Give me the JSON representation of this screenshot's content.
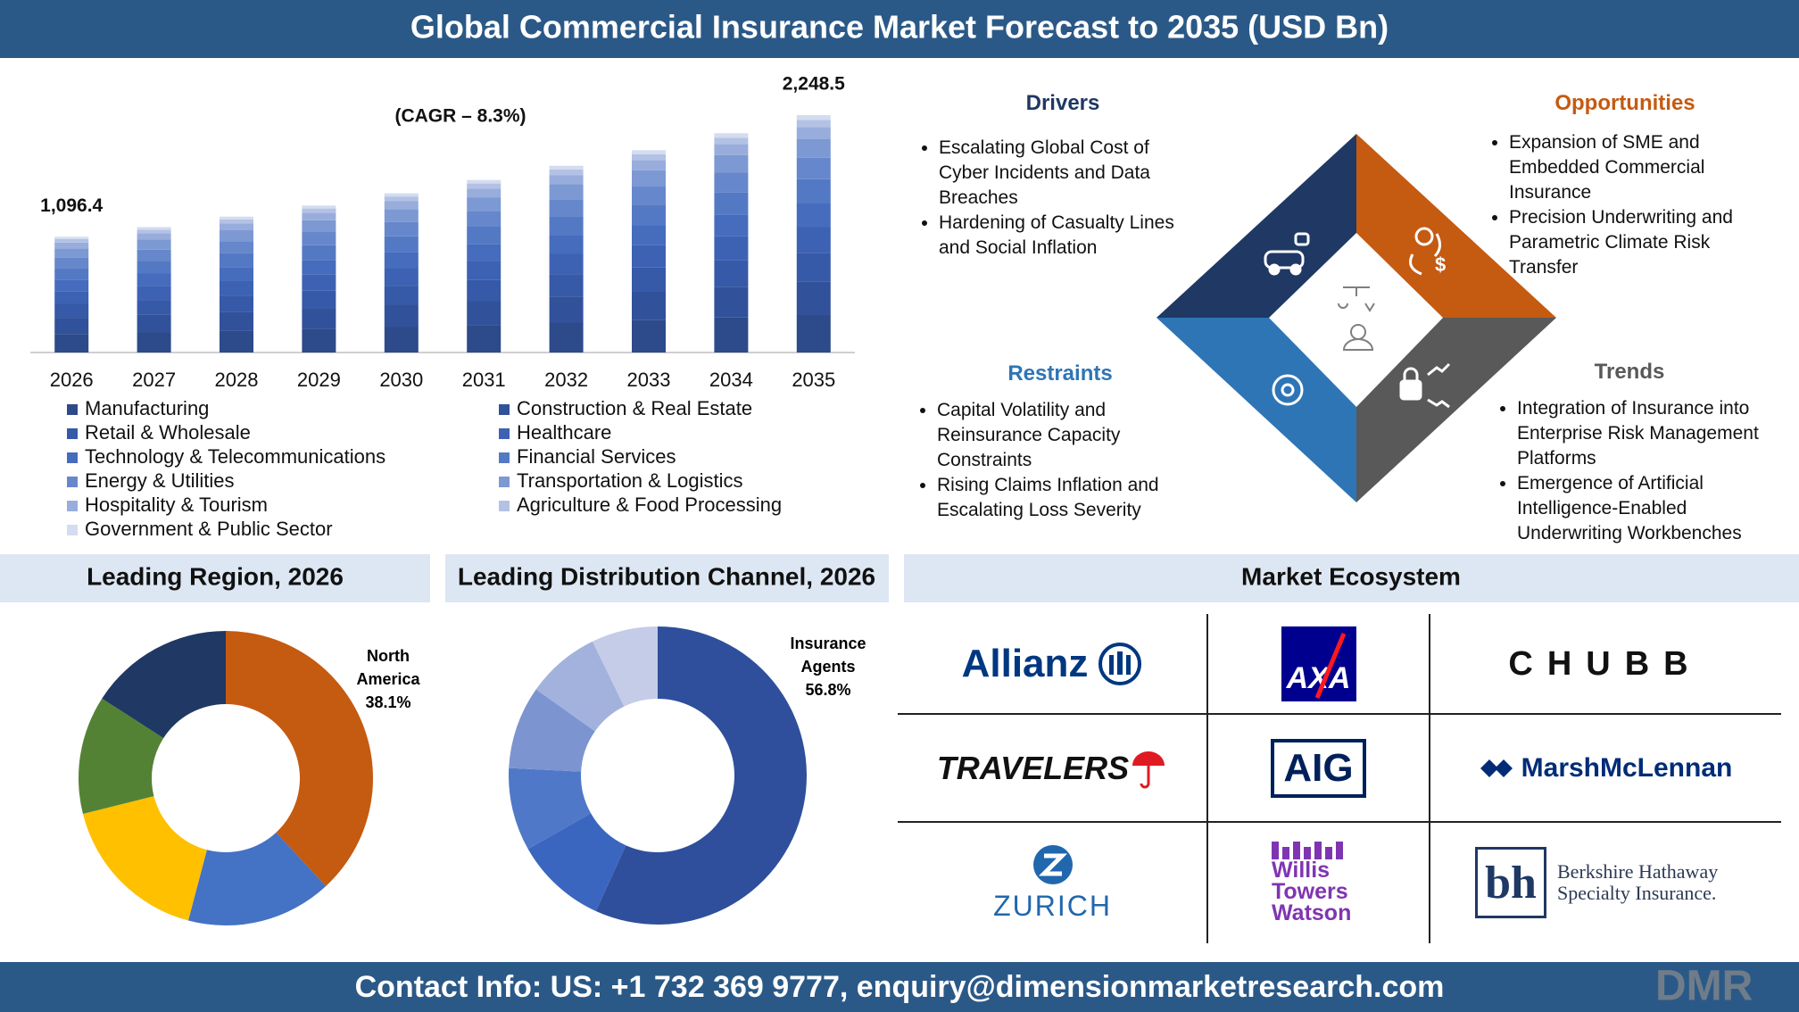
{
  "title": "Global Commercial Insurance Market Forecast to 2035 (USD Bn)",
  "chart_data": [
    {
      "type": "stacked-bar",
      "annotation": "(CAGR – 8.3%)",
      "categories": [
        "2026",
        "2027",
        "2028",
        "2029",
        "2030",
        "2031",
        "2032",
        "2033",
        "2034",
        "2035"
      ],
      "series": [
        {
          "name": "Manufacturing",
          "color": "#2d4a8a",
          "values": [
            175.5,
            190,
            206,
            223,
            241,
            261,
            283,
            307,
            332,
            359.6
          ]
        },
        {
          "name": "Construction & Real Estate",
          "color": "#31519a",
          "values": [
            153.5,
            166,
            180,
            195,
            211,
            229,
            248,
            268,
            291,
            314.8
          ]
        },
        {
          "name": "Retail & Wholesale",
          "color": "#3659a8",
          "values": [
            131.6,
            142,
            154,
            167,
            181,
            196,
            212,
            230,
            249,
            269.8
          ]
        },
        {
          "name": "Healthcare",
          "color": "#3d62b4",
          "values": [
            120.6,
            131,
            141,
            153,
            166,
            180,
            195,
            211,
            228,
            247.3
          ]
        },
        {
          "name": "Technology & Telecommunications",
          "color": "#456cbd",
          "values": [
            109.6,
            119,
            129,
            139,
            151,
            163,
            177,
            192,
            208,
            224.9
          ]
        },
        {
          "name": "Financial Services",
          "color": "#5479c4",
          "values": [
            109.6,
            119,
            129,
            139,
            151,
            163,
            177,
            192,
            208,
            224.9
          ]
        },
        {
          "name": "Energy & Utilities",
          "color": "#6687cb",
          "values": [
            98.7,
            107,
            116,
            125,
            136,
            147,
            159,
            172,
            187,
            202.4
          ]
        },
        {
          "name": "Transportation & Logistics",
          "color": "#7d99d3",
          "values": [
            87.7,
            95,
            103,
            111,
            121,
            131,
            142,
            153,
            166,
            179.9
          ]
        },
        {
          "name": "Hospitality & Tourism",
          "color": "#98addb",
          "values": [
            54.8,
            59,
            64,
            70,
            75,
            82,
            88,
            96,
            104,
            112.4
          ]
        },
        {
          "name": "Agriculture & Food Processing",
          "color": "#b3c2e4",
          "values": [
            32.9,
            36,
            39,
            42,
            45,
            49,
            53,
            57,
            62,
            67.5
          ]
        },
        {
          "name": "Government & Public Sector",
          "color": "#d3dcf0",
          "values": [
            21.9,
            24,
            26,
            28,
            30,
            33,
            35,
            38,
            42,
            45.0
          ]
        }
      ],
      "totals": [
        1096.4,
        null,
        null,
        null,
        null,
        null,
        null,
        null,
        null,
        2248.5
      ],
      "total_labels": [
        "1,096.4",
        null,
        null,
        null,
        null,
        null,
        null,
        null,
        null,
        "2,248.5"
      ]
    },
    {
      "type": "donut",
      "title": "Leading Region, 2026",
      "categories": [
        "North America",
        null,
        null,
        null,
        null
      ],
      "values": [
        38.1,
        16,
        17,
        13,
        15.9
      ],
      "value_labels": [
        "38.1%",
        null,
        null,
        null,
        null
      ],
      "colors": [
        "#c55a11",
        "#4472c4",
        "#ffc000",
        "#548235",
        "#203864"
      ]
    },
    {
      "type": "donut",
      "title": "Leading Distribution Channel, 2026",
      "categories": [
        "Insurance Agents",
        null,
        null,
        null,
        null,
        null
      ],
      "values": [
        56.8,
        10,
        9,
        9,
        8,
        7.2
      ],
      "value_labels": [
        "56.8%",
        null,
        null,
        null,
        null,
        null
      ],
      "colors": [
        "#2f4f9c",
        "#3a66c0",
        "#5078c8",
        "#7c94d0",
        "#a3b2dd",
        "#c4cce8"
      ]
    }
  ],
  "dro": {
    "drivers": {
      "title": "Drivers",
      "items": [
        "Escalating Global Cost of Cyber Incidents and Data Breaches",
        "Hardening of Casualty Lines and Social Inflation"
      ]
    },
    "opportunities": {
      "title": "Opportunities",
      "items": [
        "Expansion of SME and Embedded Commercial Insurance",
        "Precision Underwriting and Parametric Climate Risk Transfer"
      ]
    },
    "restraints": {
      "title": "Restraints",
      "items": [
        "Capital Volatility and Reinsurance Capacity Constraints",
        "Rising Claims Inflation and Escalating Loss Severity"
      ]
    },
    "trends": {
      "title": "Trends",
      "items": [
        "Integration of Insurance into Enterprise Risk Management Platforms",
        "Emergence of Artificial Intelligence-Enabled Underwriting Workbenches"
      ]
    }
  },
  "ecosystem": {
    "title": "Market Ecosystem",
    "companies": [
      "Allianz",
      "AXA",
      "CHUBB",
      "TRAVELERS",
      "AIG",
      "MarshMcLennan",
      "ZURICH",
      "Willis Towers Watson",
      "Berkshire Hathaway Specialty Insurance."
    ]
  },
  "contact": "Contact Info: US: +1 732 369 9777, enquiry@dimensionmarketresearch.com",
  "brand": "DMR"
}
